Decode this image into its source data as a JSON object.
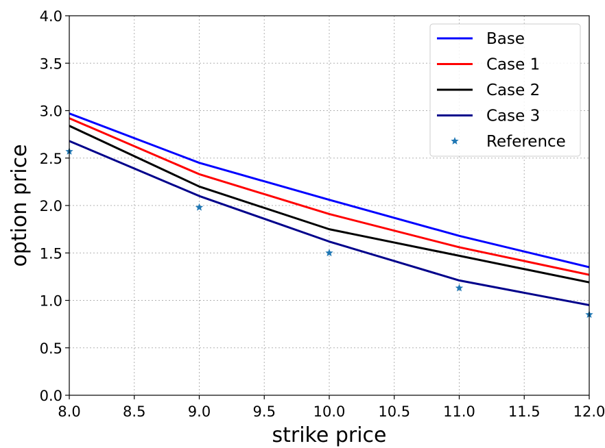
{
  "chart_data": {
    "type": "line",
    "xlabel": "strike price",
    "ylabel": "option price",
    "xlim": [
      8.0,
      12.0
    ],
    "ylim": [
      0.0,
      4.0
    ],
    "xticks": [
      "8.0",
      "8.5",
      "9.0",
      "9.5",
      "10.0",
      "10.5",
      "11.0",
      "11.5",
      "12.0"
    ],
    "yticks": [
      "0.0",
      "0.5",
      "1.0",
      "1.5",
      "2.0",
      "2.5",
      "3.0",
      "3.5",
      "4.0"
    ],
    "grid": true,
    "legend_position": "top-right",
    "x": [
      8,
      9,
      10,
      11,
      12
    ],
    "series": [
      {
        "name": "Base",
        "style": "line",
        "color": "#0000ff",
        "values": [
          2.97,
          2.45,
          2.06,
          1.68,
          1.35
        ]
      },
      {
        "name": "Case 1",
        "style": "line",
        "color": "#ff0000",
        "values": [
          2.92,
          2.33,
          1.91,
          1.56,
          1.27
        ]
      },
      {
        "name": "Case 2",
        "style": "line",
        "color": "#000000",
        "values": [
          2.84,
          2.2,
          1.75,
          1.47,
          1.19
        ]
      },
      {
        "name": "Case 3",
        "style": "line",
        "color": "#00008b",
        "values": [
          2.68,
          2.1,
          1.62,
          1.21,
          0.95
        ]
      },
      {
        "name": "Reference",
        "style": "marker",
        "color": "#1f77b4",
        "values": [
          2.57,
          1.98,
          1.5,
          1.13,
          0.85
        ]
      }
    ]
  }
}
